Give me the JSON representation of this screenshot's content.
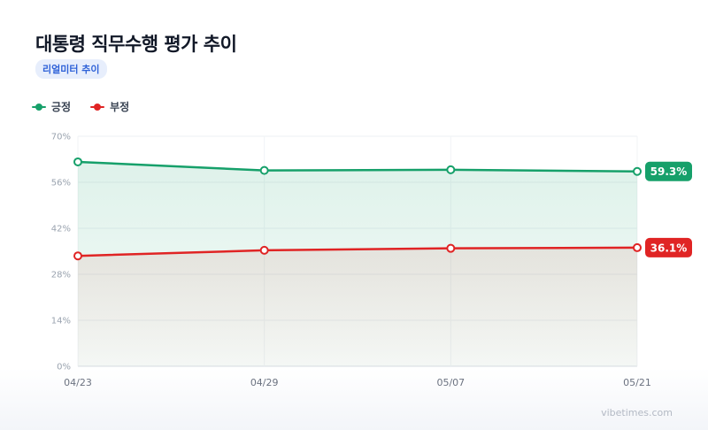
{
  "header": {
    "title": "대통령 직무수행 평가 추이",
    "badge": "리얼미터 추이"
  },
  "legend": [
    {
      "label": "긍정",
      "color": "#16a06a"
    },
    {
      "label": "부정",
      "color": "#e02424"
    }
  ],
  "watermark": "vibetimes.com",
  "chart_data": {
    "type": "line",
    "x": [
      "04/23",
      "04/29",
      "05/07",
      "05/21"
    ],
    "series": [
      {
        "name": "긍정",
        "values": [
          62.2,
          59.6,
          59.8,
          59.3
        ],
        "color": "#16a06a",
        "end_label": "59.3%"
      },
      {
        "name": "부정",
        "values": [
          33.6,
          35.3,
          35.9,
          36.1
        ],
        "color": "#e02424",
        "end_label": "36.1%"
      }
    ],
    "yticks": [
      "0%",
      "14%",
      "28%",
      "42%",
      "56%",
      "70%"
    ],
    "ylim": [
      0,
      70
    ],
    "grid": true,
    "legend_position": "top-left"
  }
}
